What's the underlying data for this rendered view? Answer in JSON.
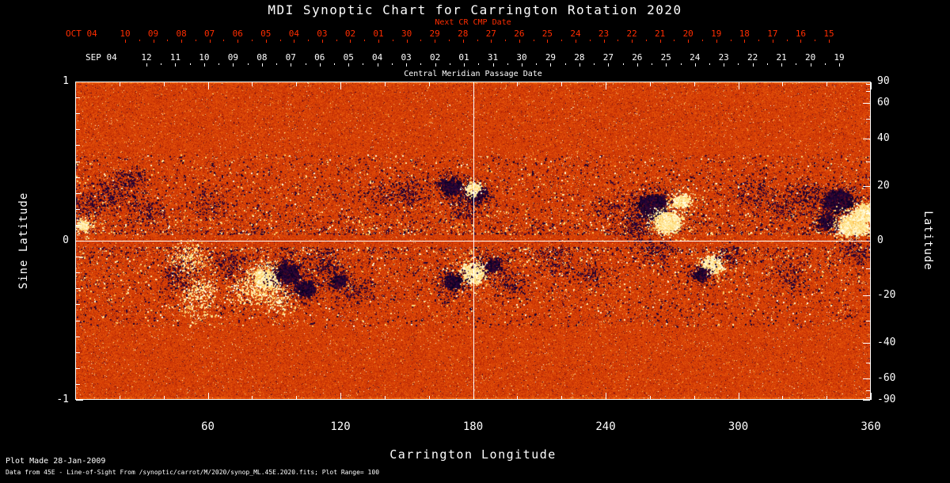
{
  "title": "MDI Synoptic Chart for Carrington Rotation 2020",
  "colors": {
    "background": "#000000",
    "axis_text": "#ffffff",
    "next_cr_axis": "#ff2d00",
    "grid_line": "#ffffff"
  },
  "top_axis_next_cr": {
    "axis_label": "Next CR CMP Date",
    "month_label": "OCT 04",
    "day_labels": [
      "10",
      "09",
      "08",
      "07",
      "06",
      "05",
      "04",
      "03",
      "02",
      "01",
      "30",
      "29",
      "28",
      "27",
      "26",
      "25",
      "24",
      "23",
      "22",
      "21",
      "20",
      "19",
      "18",
      "17",
      "16",
      "15"
    ]
  },
  "top_axis_cmp": {
    "axis_label": "Central Meridian Passage Date",
    "month_label": "SEP 04",
    "day_labels": [
      "12",
      "11",
      "10",
      "09",
      "08",
      "07",
      "06",
      "05",
      "04",
      "03",
      "02",
      "01",
      "31",
      "30",
      "29",
      "28",
      "27",
      "26",
      "25",
      "24",
      "23",
      "22",
      "21",
      "20",
      "19"
    ]
  },
  "footer": {
    "line1": "Plot Made 28-Jan-2009",
    "line2": "Data from 45E - Line-of-Sight From /synoptic/carrot/M/2020/synop_ML.45E.2020.fits; Plot Range=  100"
  },
  "chart_data": {
    "type": "heatmap",
    "title": "MDI Synoptic Chart for Carrington Rotation 2020",
    "xlabel": "Carrington Longitude",
    "ylabel_left": "Sine Latitude",
    "ylabel_right": "Latitude",
    "x_range": [
      0,
      360
    ],
    "x_major_ticks": [
      60,
      120,
      180,
      240,
      300,
      360
    ],
    "x_minor_step": 20,
    "y_left_range": [
      -1,
      1
    ],
    "y_left_major_ticks": [
      1,
      0,
      -1
    ],
    "y_left_tick_labels": [
      "1",
      "0",
      "-1"
    ],
    "y_left_minor_step": 0.1,
    "y_right_major_ticks": [
      90,
      60,
      40,
      20,
      0,
      -20,
      -40,
      -60,
      -90
    ],
    "y_right_tick_labels": [
      "90",
      "60",
      "40",
      "20",
      "0",
      "-20",
      "-40",
      "-60",
      "-90"
    ],
    "y_right_minor_step_deg": 10,
    "grid": {
      "vertical_line_at_lon": 180,
      "horizontal_line_at_sinlat": 0
    },
    "colormap_description": "noisy solar magnetogram: orange-red quiet sun, dark navy/black negative polarity, white/yellow positive polarity",
    "palette_stops": [
      [
        0.0,
        5,
        0,
        30
      ],
      [
        0.1,
        40,
        5,
        60
      ],
      [
        0.18,
        95,
        10,
        25
      ],
      [
        0.3,
        165,
        28,
        5
      ],
      [
        0.5,
        215,
        62,
        5
      ],
      [
        0.68,
        240,
        102,
        15
      ],
      [
        0.82,
        250,
        162,
        45
      ],
      [
        0.92,
        255,
        225,
        130
      ],
      [
        1.0,
        255,
        255,
        235
      ]
    ],
    "active_regions": [
      {
        "lon": 3,
        "sinlat": 0.1,
        "polarity": "bright",
        "core": 150,
        "halo": 200,
        "core_sigma": 3,
        "halo_sigma": 10
      },
      {
        "lon": 5,
        "sinlat": 0.22,
        "polarity": "dark",
        "core": 0,
        "halo": 200,
        "core_sigma": 0,
        "halo_sigma": 10
      },
      {
        "lon": 16,
        "sinlat": 0.3,
        "polarity": "dark",
        "core": 0,
        "halo": 350,
        "core_sigma": 0,
        "halo_sigma": 13
      },
      {
        "lon": 25,
        "sinlat": 0.38,
        "polarity": "dark",
        "core": 0,
        "halo": 200,
        "core_sigma": 0,
        "halo_sigma": 10
      },
      {
        "lon": 32,
        "sinlat": 0.18,
        "polarity": "dark",
        "core": 0,
        "halo": 220,
        "core_sigma": 0,
        "halo_sigma": 13
      },
      {
        "lon": 60,
        "sinlat": 0.24,
        "polarity": "dark",
        "core": 0,
        "halo": 180,
        "core_sigma": 0,
        "halo_sigma": 13
      },
      {
        "lon": 52,
        "sinlat": -0.12,
        "polarity": "bright",
        "core": 0,
        "halo": 350,
        "core_sigma": 0,
        "halo_sigma": 13
      },
      {
        "lon": 56,
        "sinlat": -0.3,
        "polarity": "bright",
        "core": 0,
        "halo": 250,
        "core_sigma": 0,
        "halo_sigma": 11
      },
      {
        "lon": 47,
        "sinlat": -0.22,
        "polarity": "dark",
        "core": 0,
        "halo": 250,
        "core_sigma": 0,
        "halo_sigma": 13
      },
      {
        "lon": 70,
        "sinlat": -0.15,
        "polarity": "dark",
        "core": 0,
        "halo": 300,
        "core_sigma": 0,
        "halo_sigma": 14
      },
      {
        "lon": 86,
        "sinlat": -0.24,
        "polarity": "bright",
        "core": 1700,
        "halo": 700,
        "core_sigma": 5,
        "halo_sigma": 15
      },
      {
        "lon": 96,
        "sinlat": -0.2,
        "polarity": "dark",
        "core": 700,
        "halo": 500,
        "core_sigma": 6,
        "halo_sigma": 13
      },
      {
        "lon": 104,
        "sinlat": -0.3,
        "polarity": "dark",
        "core": 300,
        "halo": 300,
        "core_sigma": 5,
        "halo_sigma": 11
      },
      {
        "lon": 92,
        "sinlat": -0.38,
        "polarity": "bright",
        "core": 0,
        "halo": 220,
        "core_sigma": 0,
        "halo_sigma": 11
      },
      {
        "lon": 113,
        "sinlat": -0.15,
        "polarity": "dark",
        "core": 0,
        "halo": 250,
        "core_sigma": 0,
        "halo_sigma": 11
      },
      {
        "lon": 119,
        "sinlat": -0.25,
        "polarity": "dark",
        "core": 200,
        "halo": 250,
        "core_sigma": 4,
        "halo_sigma": 9
      },
      {
        "lon": 128,
        "sinlat": -0.32,
        "polarity": "dark",
        "core": 0,
        "halo": 180,
        "core_sigma": 0,
        "halo_sigma": 11
      },
      {
        "lon": 139,
        "sinlat": 0.28,
        "polarity": "dark",
        "core": 0,
        "halo": 200,
        "core_sigma": 0,
        "halo_sigma": 15
      },
      {
        "lon": 152,
        "sinlat": 0.31,
        "polarity": "dark",
        "core": 0,
        "halo": 250,
        "core_sigma": 0,
        "halo_sigma": 13
      },
      {
        "lon": 170,
        "sinlat": 0.34,
        "polarity": "dark",
        "core": 250,
        "halo": 350,
        "core_sigma": 6,
        "halo_sigma": 13
      },
      {
        "lon": 181,
        "sinlat": 0.3,
        "polarity": "dark",
        "core": 250,
        "halo": 350,
        "core_sigma": 6,
        "halo_sigma": 13
      },
      {
        "lon": 180,
        "sinlat": 0.33,
        "polarity": "bright",
        "core": 160,
        "halo": 100,
        "core_sigma": 4,
        "halo_sigma": 7
      },
      {
        "lon": 176,
        "sinlat": 0.2,
        "polarity": "dark",
        "core": 0,
        "halo": 200,
        "core_sigma": 0,
        "halo_sigma": 11
      },
      {
        "lon": 180,
        "sinlat": -0.2,
        "polarity": "bright",
        "core": 750,
        "halo": 400,
        "core_sigma": 6,
        "halo_sigma": 13
      },
      {
        "lon": 171,
        "sinlat": -0.26,
        "polarity": "dark",
        "core": 200,
        "halo": 300,
        "core_sigma": 5,
        "halo_sigma": 13
      },
      {
        "lon": 189,
        "sinlat": -0.15,
        "polarity": "dark",
        "core": 150,
        "halo": 250,
        "core_sigma": 4,
        "halo_sigma": 11
      },
      {
        "lon": 197,
        "sinlat": -0.28,
        "polarity": "dark",
        "core": 0,
        "halo": 200,
        "core_sigma": 0,
        "halo_sigma": 11
      },
      {
        "lon": 217,
        "sinlat": -0.14,
        "polarity": "dark",
        "core": 0,
        "halo": 200,
        "core_sigma": 0,
        "halo_sigma": 15
      },
      {
        "lon": 233,
        "sinlat": -0.22,
        "polarity": "dark",
        "core": 0,
        "halo": 150,
        "core_sigma": 0,
        "halo_sigma": 11
      },
      {
        "lon": 242,
        "sinlat": 0.2,
        "polarity": "dark",
        "core": 0,
        "halo": 150,
        "core_sigma": 0,
        "halo_sigma": 13
      },
      {
        "lon": 261,
        "sinlat": 0.22,
        "polarity": "dark",
        "core": 1500,
        "halo": 700,
        "core_sigma": 7,
        "halo_sigma": 15
      },
      {
        "lon": 268,
        "sinlat": 0.12,
        "polarity": "bright",
        "core": 950,
        "halo": 500,
        "core_sigma": 6,
        "halo_sigma": 12
      },
      {
        "lon": 274,
        "sinlat": 0.25,
        "polarity": "bright",
        "core": 250,
        "halo": 200,
        "core_sigma": 4,
        "halo_sigma": 9
      },
      {
        "lon": 254,
        "sinlat": 0.08,
        "polarity": "dark",
        "core": 0,
        "halo": 250,
        "core_sigma": 0,
        "halo_sigma": 11
      },
      {
        "lon": 263,
        "sinlat": -0.06,
        "polarity": "dark",
        "core": 0,
        "halo": 200,
        "core_sigma": 0,
        "halo_sigma": 13
      },
      {
        "lon": 288,
        "sinlat": -0.15,
        "polarity": "bright",
        "core": 420,
        "halo": 250,
        "core_sigma": 5,
        "halo_sigma": 9
      },
      {
        "lon": 283,
        "sinlat": -0.21,
        "polarity": "dark",
        "core": 150,
        "halo": 200,
        "core_sigma": 4,
        "halo_sigma": 9
      },
      {
        "lon": 296,
        "sinlat": -0.1,
        "polarity": "dark",
        "core": 0,
        "halo": 150,
        "core_sigma": 0,
        "halo_sigma": 9
      },
      {
        "lon": 306,
        "sinlat": 0.3,
        "polarity": "dark",
        "core": 0,
        "halo": 250,
        "core_sigma": 0,
        "halo_sigma": 16
      },
      {
        "lon": 320,
        "sinlat": 0.2,
        "polarity": "dark",
        "core": 0,
        "halo": 200,
        "core_sigma": 0,
        "halo_sigma": 13
      },
      {
        "lon": 330,
        "sinlat": 0.28,
        "polarity": "dark",
        "core": 0,
        "halo": 250,
        "core_sigma": 0,
        "halo_sigma": 13
      },
      {
        "lon": 324,
        "sinlat": -0.22,
        "polarity": "dark",
        "core": 0,
        "halo": 200,
        "core_sigma": 0,
        "halo_sigma": 13
      },
      {
        "lon": 340,
        "sinlat": 0.12,
        "polarity": "dark",
        "core": 200,
        "halo": 300,
        "core_sigma": 5,
        "halo_sigma": 11
      },
      {
        "lon": 345,
        "sinlat": 0.25,
        "polarity": "dark",
        "core": 950,
        "halo": 600,
        "core_sigma": 7,
        "halo_sigma": 14
      },
      {
        "lon": 352,
        "sinlat": 0.1,
        "polarity": "bright",
        "core": 1150,
        "halo": 600,
        "core_sigma": 7,
        "halo_sigma": 13
      },
      {
        "lon": 357,
        "sinlat": 0.18,
        "polarity": "bright",
        "core": 300,
        "halo": 200,
        "core_sigma": 5,
        "halo_sigma": 8
      },
      {
        "lon": 353,
        "sinlat": -0.06,
        "polarity": "dark",
        "core": 0,
        "halo": 200,
        "core_sigma": 0,
        "halo_sigma": 11
      },
      {
        "lon": 55,
        "sinlat": -0.42,
        "polarity": "bright",
        "core": 0,
        "halo": 200,
        "core_sigma": 0,
        "halo_sigma": 14
      },
      {
        "lon": 76,
        "sinlat": -0.33,
        "polarity": "bright",
        "core": 0,
        "halo": 200,
        "core_sigma": 0,
        "halo_sigma": 12
      }
    ]
  }
}
